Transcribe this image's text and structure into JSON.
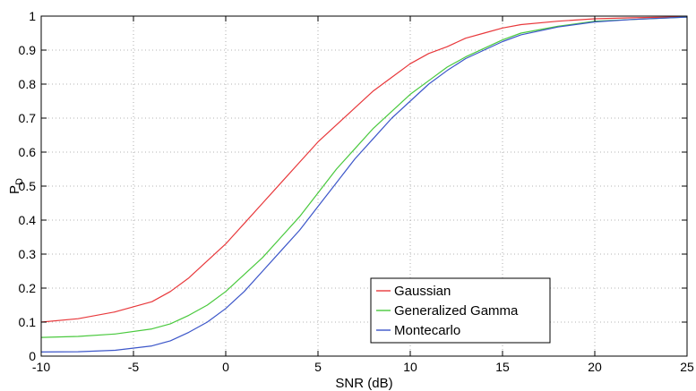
{
  "chart_data": {
    "type": "line",
    "xlabel": "SNR (dB)",
    "ylabel": "P",
    "ylabel_subscript": "D",
    "xlim": [
      -10,
      25
    ],
    "ylim": [
      0,
      1
    ],
    "xticks": [
      -10,
      -5,
      0,
      5,
      10,
      15,
      20,
      25
    ],
    "yticks": [
      0,
      0.1,
      0.2,
      0.3,
      0.4,
      0.5,
      0.6,
      0.7,
      0.8,
      0.9,
      1
    ],
    "xtick_labels": [
      "-10",
      "-5",
      "0",
      "5",
      "10",
      "15",
      "20",
      "25"
    ],
    "ytick_labels": [
      "0",
      "0.1",
      "0.2",
      "0.3",
      "0.4",
      "0.5",
      "0.6",
      "0.7",
      "0.8",
      "0.9",
      "1"
    ],
    "grid": true,
    "legend_position": "bottom-right",
    "x": [
      -10,
      -8,
      -6,
      -4,
      -3,
      -2,
      -1,
      0,
      1,
      2,
      3,
      4,
      5,
      6,
      7,
      8,
      9,
      10,
      11,
      12,
      13,
      14,
      15,
      16,
      18,
      20,
      22,
      25
    ],
    "series": [
      {
        "name": "Gaussian",
        "color": "#e8383b",
        "values": [
          0.1,
          0.11,
          0.13,
          0.16,
          0.19,
          0.23,
          0.28,
          0.33,
          0.39,
          0.45,
          0.51,
          0.57,
          0.63,
          0.68,
          0.73,
          0.78,
          0.82,
          0.86,
          0.89,
          0.91,
          0.935,
          0.95,
          0.965,
          0.975,
          0.985,
          0.992,
          0.995,
          0.998
        ]
      },
      {
        "name": "Generalized Gamma",
        "color": "#49c93d",
        "values": [
          0.055,
          0.058,
          0.065,
          0.08,
          0.095,
          0.12,
          0.15,
          0.19,
          0.24,
          0.29,
          0.35,
          0.41,
          0.48,
          0.55,
          0.61,
          0.67,
          0.72,
          0.77,
          0.81,
          0.85,
          0.88,
          0.905,
          0.93,
          0.95,
          0.97,
          0.985,
          0.99,
          0.997
        ]
      },
      {
        "name": "Montecarlo",
        "color": "#3c56c9",
        "values": [
          0.012,
          0.013,
          0.017,
          0.03,
          0.045,
          0.07,
          0.1,
          0.14,
          0.19,
          0.25,
          0.31,
          0.37,
          0.44,
          0.51,
          0.58,
          0.64,
          0.7,
          0.75,
          0.8,
          0.84,
          0.875,
          0.9,
          0.925,
          0.945,
          0.968,
          0.983,
          0.99,
          0.997
        ]
      }
    ]
  }
}
